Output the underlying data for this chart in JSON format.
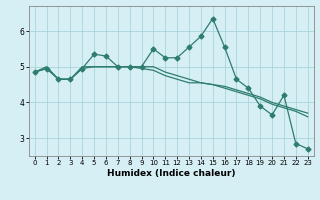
{
  "x": [
    0,
    1,
    2,
    3,
    4,
    5,
    6,
    7,
    8,
    9,
    10,
    11,
    12,
    13,
    14,
    15,
    16,
    17,
    18,
    19,
    20,
    21,
    22,
    23
  ],
  "line1": [
    4.85,
    4.95,
    4.65,
    4.65,
    4.95,
    5.35,
    5.3,
    5.0,
    5.0,
    5.0,
    5.5,
    5.25,
    5.25,
    5.55,
    5.85,
    6.35,
    5.55,
    4.65,
    4.4,
    3.9,
    3.65,
    4.2,
    2.85,
    2.7
  ],
  "line2": [
    4.85,
    4.95,
    4.65,
    4.65,
    4.95,
    5.0,
    5.0,
    5.0,
    5.0,
    4.95,
    4.9,
    4.75,
    4.65,
    4.55,
    4.55,
    4.5,
    4.45,
    4.35,
    4.25,
    4.15,
    4.0,
    3.9,
    3.8,
    3.7
  ],
  "line3": [
    4.85,
    5.0,
    4.65,
    4.65,
    5.0,
    5.0,
    5.0,
    5.0,
    5.0,
    5.0,
    5.0,
    4.85,
    4.75,
    4.65,
    4.55,
    4.5,
    4.4,
    4.3,
    4.2,
    4.1,
    3.95,
    3.85,
    3.75,
    3.6
  ],
  "line_color": "#2e7d6e",
  "bg_color": "#d6eff5",
  "grid_color": "#a0cfd8",
  "xlabel": "Humidex (Indice chaleur)",
  "xlabel_fontsize": 6.5,
  "ylim": [
    2.5,
    6.7
  ],
  "xlim": [
    -0.5,
    23.5
  ],
  "yticks": [
    3,
    4,
    5,
    6
  ],
  "xticks": [
    0,
    1,
    2,
    3,
    4,
    5,
    6,
    7,
    8,
    9,
    10,
    11,
    12,
    13,
    14,
    15,
    16,
    17,
    18,
    19,
    20,
    21,
    22,
    23
  ],
  "tick_fontsize": 5.0,
  "ytick_fontsize": 5.5
}
